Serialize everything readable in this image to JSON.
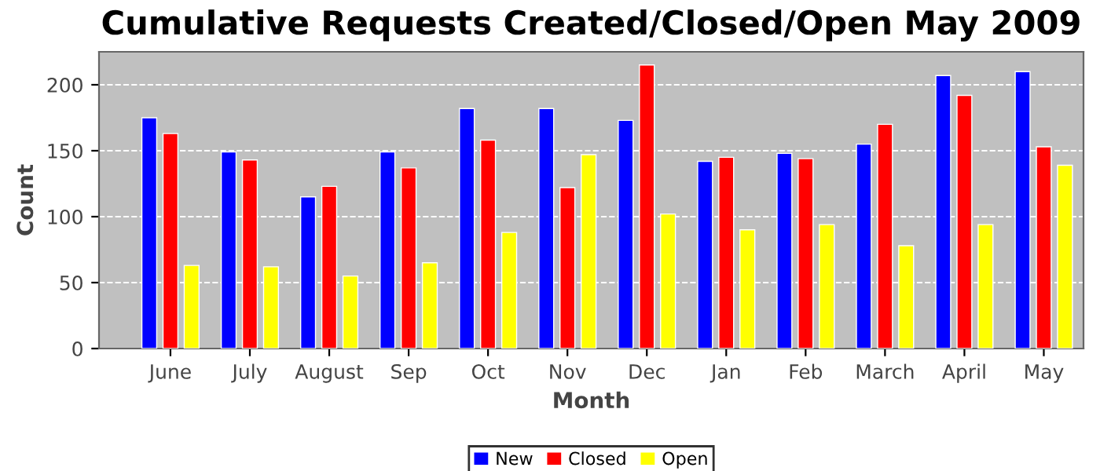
{
  "chart_data": {
    "type": "bar",
    "title": "Cumulative Requests Created/Closed/Open May 2009",
    "xlabel": "Month",
    "ylabel": "Count",
    "categories": [
      "June",
      "July",
      "August",
      "Sep",
      "Oct",
      "Nov",
      "Dec",
      "Jan",
      "Feb",
      "March",
      "April",
      "May"
    ],
    "series": [
      {
        "name": "New",
        "color": "#0000ff",
        "values": [
          175,
          149,
          115,
          149,
          182,
          182,
          173,
          142,
          148,
          155,
          207,
          210
        ]
      },
      {
        "name": "Closed",
        "color": "#ff0000",
        "values": [
          163,
          143,
          123,
          137,
          158,
          122,
          215,
          145,
          144,
          170,
          192,
          153
        ]
      },
      {
        "name": "Open",
        "color": "#ffff00",
        "values": [
          63,
          62,
          55,
          65,
          88,
          147,
          102,
          90,
          94,
          78,
          94,
          139
        ]
      }
    ],
    "ylim": [
      0,
      225
    ],
    "yticks": [
      0,
      50,
      100,
      150,
      200
    ],
    "grid": "y",
    "legend": "bottom"
  }
}
